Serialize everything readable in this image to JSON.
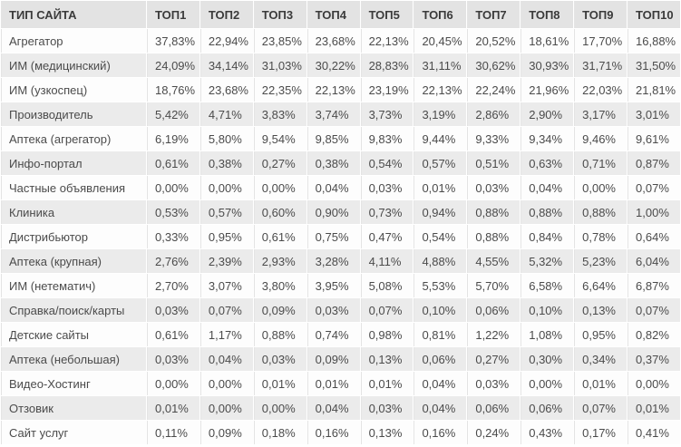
{
  "chart_data": {
    "type": "table",
    "columns": [
      "ТИП САЙТА",
      "ТОП1",
      "ТОП2",
      "ТОП3",
      "ТОП4",
      "ТОП5",
      "ТОП6",
      "ТОП7",
      "ТОП8",
      "ТОП9",
      "ТОП10"
    ],
    "rows": [
      {
        "label": "Агрегатор",
        "values": [
          "37,83%",
          "22,94%",
          "23,85%",
          "23,68%",
          "22,13%",
          "20,45%",
          "20,52%",
          "18,61%",
          "17,70%",
          "16,88%"
        ]
      },
      {
        "label": "ИМ (медицинский)",
        "values": [
          "24,09%",
          "34,14%",
          "31,03%",
          "30,22%",
          "28,83%",
          "31,11%",
          "30,62%",
          "30,93%",
          "31,71%",
          "31,50%"
        ]
      },
      {
        "label": "ИМ (узкоспец)",
        "values": [
          "18,76%",
          "23,68%",
          "22,35%",
          "22,13%",
          "23,19%",
          "22,13%",
          "22,24%",
          "21,96%",
          "22,03%",
          "21,81%"
        ]
      },
      {
        "label": "Производитель",
        "values": [
          "5,42%",
          "4,71%",
          "3,83%",
          "3,74%",
          "3,73%",
          "3,19%",
          "2,86%",
          "2,90%",
          "3,17%",
          "3,01%"
        ]
      },
      {
        "label": "Аптека (агрегатор)",
        "values": [
          "6,19%",
          "5,80%",
          "9,54%",
          "9,85%",
          "9,83%",
          "9,44%",
          "9,33%",
          "9,34%",
          "9,46%",
          "9,61%"
        ]
      },
      {
        "label": "Инфо-портал",
        "values": [
          "0,61%",
          "0,38%",
          "0,27%",
          "0,38%",
          "0,54%",
          "0,57%",
          "0,51%",
          "0,63%",
          "0,71%",
          "0,87%"
        ]
      },
      {
        "label": "Частные объявления",
        "values": [
          "0,00%",
          "0,00%",
          "0,00%",
          "0,04%",
          "0,03%",
          "0,01%",
          "0,03%",
          "0,04%",
          "0,00%",
          "0,07%"
        ]
      },
      {
        "label": "Клиника",
        "values": [
          "0,53%",
          "0,57%",
          "0,60%",
          "0,90%",
          "0,73%",
          "0,94%",
          "0,88%",
          "0,88%",
          "0,88%",
          "1,00%"
        ]
      },
      {
        "label": "Дистрибьютор",
        "values": [
          "0,33%",
          "0,95%",
          "0,61%",
          "0,75%",
          "0,47%",
          "0,54%",
          "0,88%",
          "0,84%",
          "0,78%",
          "0,64%"
        ]
      },
      {
        "label": "Аптека (крупная)",
        "values": [
          "2,76%",
          "2,39%",
          "2,93%",
          "3,28%",
          "4,11%",
          "4,88%",
          "4,55%",
          "5,32%",
          "5,23%",
          "6,04%"
        ]
      },
      {
        "label": "ИМ (нетематич)",
        "values": [
          "2,70%",
          "3,07%",
          "3,80%",
          "3,95%",
          "5,08%",
          "5,53%",
          "5,70%",
          "6,58%",
          "6,64%",
          "6,87%"
        ]
      },
      {
        "label": "Справка/поиск/карты",
        "values": [
          "0,03%",
          "0,07%",
          "0,09%",
          "0,03%",
          "0,07%",
          "0,10%",
          "0,06%",
          "0,10%",
          "0,13%",
          "0,07%"
        ]
      },
      {
        "label": "Детские сайты",
        "values": [
          "0,61%",
          "1,17%",
          "0,88%",
          "0,74%",
          "0,98%",
          "0,81%",
          "1,22%",
          "1,08%",
          "0,95%",
          "0,82%"
        ]
      },
      {
        "label": "Аптека (небольшая)",
        "values": [
          "0,03%",
          "0,04%",
          "0,03%",
          "0,09%",
          "0,13%",
          "0,06%",
          "0,27%",
          "0,30%",
          "0,34%",
          "0,37%"
        ]
      },
      {
        "label": "Видео-Хостинг",
        "values": [
          "0,00%",
          "0,00%",
          "0,01%",
          "0,01%",
          "0,01%",
          "0,04%",
          "0,03%",
          "0,00%",
          "0,01%",
          "0,00%"
        ]
      },
      {
        "label": "Отзовик",
        "values": [
          "0,01%",
          "0,00%",
          "0,00%",
          "0,04%",
          "0,03%",
          "0,04%",
          "0,06%",
          "0,06%",
          "0,07%",
          "0,01%"
        ]
      },
      {
        "label": "Сайт услуг",
        "values": [
          "0,11%",
          "0,09%",
          "0,18%",
          "0,16%",
          "0,13%",
          "0,16%",
          "0,24%",
          "0,43%",
          "0,17%",
          "0,41%"
        ]
      }
    ]
  }
}
